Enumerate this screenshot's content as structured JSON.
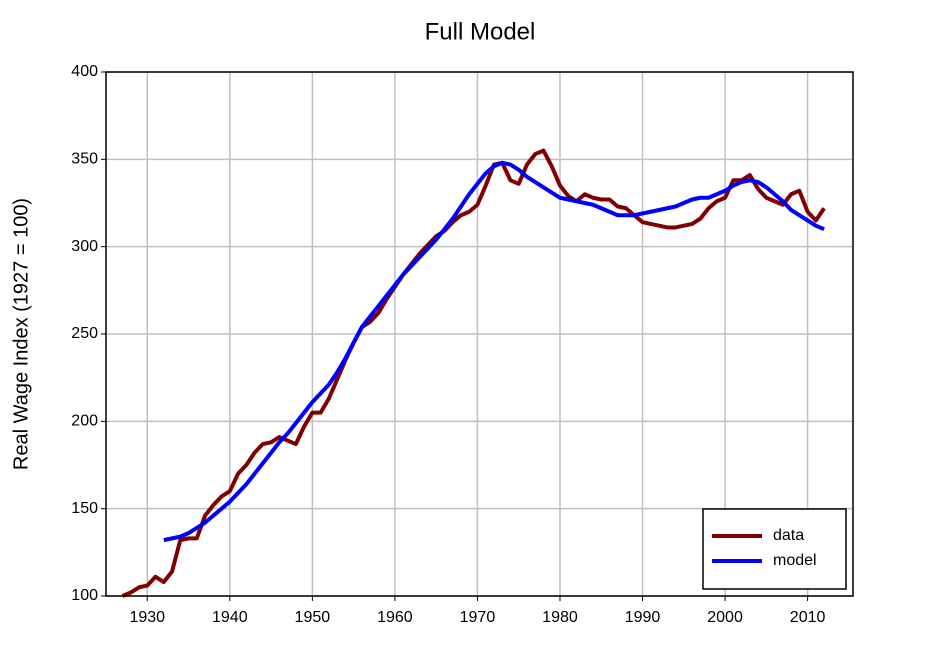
{
  "chart_data": {
    "type": "line",
    "title": "Full Model",
    "y_label": "Real Wage Index (1927 = 100)",
    "x": [
      1927,
      1928,
      1929,
      1930,
      1931,
      1932,
      1933,
      1934,
      1935,
      1936,
      1937,
      1938,
      1939,
      1940,
      1941,
      1942,
      1943,
      1944,
      1945,
      1946,
      1947,
      1948,
      1949,
      1950,
      1951,
      1952,
      1953,
      1954,
      1955,
      1956,
      1957,
      1958,
      1959,
      1960,
      1961,
      1962,
      1963,
      1964,
      1965,
      1966,
      1967,
      1968,
      1969,
      1970,
      1971,
      1972,
      1973,
      1974,
      1975,
      1976,
      1977,
      1978,
      1979,
      1980,
      1981,
      1982,
      1983,
      1984,
      1985,
      1986,
      1987,
      1988,
      1989,
      1990,
      1991,
      1992,
      1993,
      1994,
      1995,
      1996,
      1997,
      1998,
      1999,
      2000,
      2001,
      2002,
      2003,
      2004,
      2005,
      2006,
      2007,
      2008,
      2009,
      2010,
      2011,
      2012
    ],
    "series": [
      {
        "name": "data",
        "color": "#800000",
        "values": [
          100,
          102,
          105,
          106,
          111,
          108,
          114,
          132,
          133,
          133,
          146,
          152,
          157,
          160,
          170,
          175,
          182,
          187,
          188,
          191,
          189,
          187,
          197,
          205,
          205,
          213,
          224,
          235,
          245,
          254,
          257,
          262,
          270,
          277,
          284,
          290,
          296,
          301,
          306,
          309,
          314,
          318,
          320,
          324,
          335,
          347,
          348,
          338,
          336,
          347,
          353,
          355,
          346,
          335,
          329,
          326,
          330,
          328,
          327,
          327,
          323,
          322,
          318,
          314,
          313,
          312,
          311,
          311,
          312,
          313,
          316,
          322,
          326,
          328,
          338,
          338,
          341,
          333,
          328,
          326,
          324,
          330,
          332,
          320,
          315,
          322
        ]
      },
      {
        "name": "model",
        "color": "#0000ff",
        "values": [
          null,
          null,
          null,
          null,
          null,
          132,
          133,
          134,
          136,
          139,
          142,
          146,
          150,
          154,
          159,
          164,
          170,
          176,
          182,
          188,
          193,
          199,
          205,
          211,
          216,
          221,
          228,
          236,
          245,
          254,
          260,
          266,
          272,
          278,
          284,
          289,
          294,
          299,
          304,
          310,
          316,
          323,
          330,
          336,
          342,
          346,
          348,
          347,
          344,
          340,
          337,
          334,
          331,
          328,
          327,
          326,
          325,
          324,
          322,
          320,
          318,
          318,
          318,
          319,
          320,
          321,
          322,
          323,
          325,
          327,
          328,
          328,
          330,
          332,
          335,
          337,
          338,
          337,
          334,
          330,
          326,
          321,
          318,
          315,
          312,
          310
        ]
      }
    ],
    "xlim": [
      1925,
      2015.5
    ],
    "xticks": [
      1930,
      1940,
      1950,
      1960,
      1970,
      1980,
      1990,
      2000,
      2010
    ],
    "ylim": [
      100,
      400
    ],
    "yticks": [
      100,
      150,
      200,
      250,
      300,
      350,
      400
    ],
    "grid": true,
    "legend": "lower right"
  }
}
